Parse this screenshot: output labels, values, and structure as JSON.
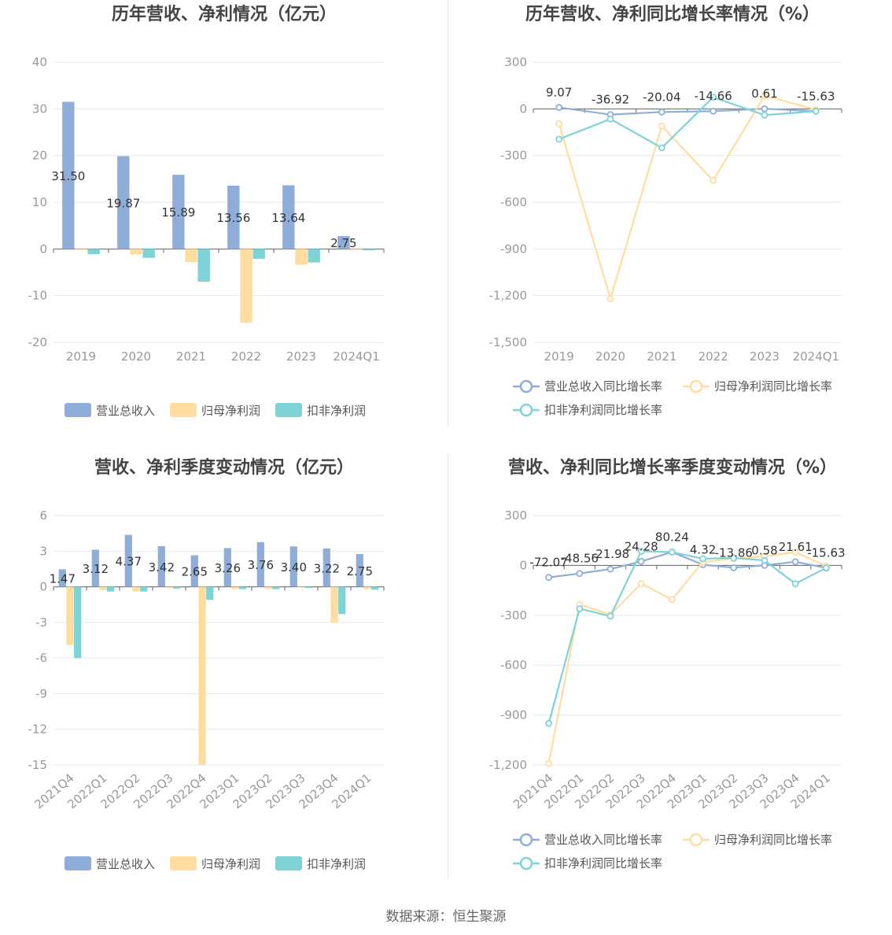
{
  "source_note": "数据来源：恒生聚源",
  "colors": {
    "revenue": "#8eaed9",
    "net_profit": "#ffdda1",
    "deducted_profit": "#7dd3d6",
    "grid": "#e6e8f0",
    "axis_text": "#999999",
    "title": "#444444"
  },
  "chart_data": [
    {
      "type": "bar",
      "title": "历年营收、净利情况（亿元）",
      "categories": [
        "2019",
        "2020",
        "2021",
        "2022",
        "2023",
        "2024Q1"
      ],
      "ylim": [
        -20,
        40
      ],
      "yticks": [
        40,
        30,
        20,
        10,
        0,
        -10,
        -20
      ],
      "series": [
        {
          "name": "营业总收入",
          "values": [
            31.5,
            19.87,
            15.89,
            13.56,
            13.64,
            2.75
          ],
          "labels": [
            "31.50",
            "19.87",
            "15.89",
            "13.56",
            "13.64",
            "2.75"
          ]
        },
        {
          "name": "归母净利润",
          "values": [
            -0.2,
            -1.2,
            -2.8,
            -15.8,
            -3.4,
            -0.2
          ]
        },
        {
          "name": "扣非净利润",
          "values": [
            -1.1,
            -1.9,
            -7.0,
            -2.1,
            -2.9,
            -0.3
          ]
        }
      ],
      "legend_position": "bottom",
      "grid": true
    },
    {
      "type": "line",
      "title": "历年营收、净利同比增长率情况（%）",
      "categories": [
        "2019",
        "2020",
        "2021",
        "2022",
        "2023",
        "2024Q1"
      ],
      "ylim": [
        -1500,
        300
      ],
      "yticks": [
        "300",
        "0",
        "-300",
        "-600",
        "-900",
        "-1,200",
        "-1,500"
      ],
      "series": [
        {
          "name": "营业总收入同比增长率",
          "values": [
            9.07,
            -36.92,
            -20.04,
            -14.66,
            0.61,
            -15.63
          ],
          "labels": [
            "9.07",
            "-36.92",
            "-20.04",
            "-14.66",
            "0.61",
            "-15.63"
          ]
        },
        {
          "name": "归母净利润同比增长率",
          "values": [
            -95,
            -1220,
            -110,
            -460,
            85,
            -5
          ]
        },
        {
          "name": "扣非净利润同比增长率",
          "values": [
            -195,
            -65,
            -250,
            75,
            -40,
            -15
          ]
        }
      ],
      "legend_position": "bottom",
      "grid": true
    },
    {
      "type": "bar",
      "title": "营收、净利季度变动情况（亿元）",
      "categories": [
        "2021Q4",
        "2022Q1",
        "2022Q2",
        "2022Q3",
        "2022Q4",
        "2023Q1",
        "2023Q2",
        "2023Q3",
        "2023Q4",
        "2024Q1"
      ],
      "ylim": [
        -15,
        6
      ],
      "yticks": [
        6,
        3,
        0,
        -3,
        -6,
        -9,
        -12,
        -15
      ],
      "series": [
        {
          "name": "营业总收入",
          "values": [
            1.47,
            3.12,
            4.37,
            3.42,
            2.65,
            3.26,
            3.76,
            3.4,
            3.22,
            2.75
          ],
          "labels": [
            "1.47",
            "3.12",
            "4.37",
            "3.42",
            "2.65",
            "3.26",
            "3.76",
            "3.40",
            "3.22",
            "2.75"
          ]
        },
        {
          "name": "归母净利润",
          "values": [
            -4.9,
            -0.3,
            -0.4,
            -0.1,
            -15.0,
            -0.2,
            -0.2,
            -0.05,
            -3.0,
            -0.2
          ]
        },
        {
          "name": "扣非净利润",
          "values": [
            -6.0,
            -0.4,
            -0.4,
            -0.15,
            -1.1,
            -0.2,
            -0.2,
            -0.1,
            -2.3,
            -0.25
          ]
        }
      ],
      "legend_position": "bottom",
      "grid": true
    },
    {
      "type": "line",
      "title": "营收、净利同比增长率季度变动情况（%）",
      "categories": [
        "2021Q4",
        "2022Q1",
        "2022Q2",
        "2022Q3",
        "2022Q4",
        "2023Q1",
        "2023Q2",
        "2023Q3",
        "2023Q4",
        "2024Q1"
      ],
      "ylim": [
        -1200,
        300
      ],
      "yticks": [
        "300",
        "0",
        "-300",
        "-600",
        "-900",
        "-1,200"
      ],
      "series": [
        {
          "name": "营业总收入同比增长率",
          "values": [
            -72.07,
            -48.56,
            -21.98,
            24.28,
            80.24,
            4.32,
            -13.86,
            0.58,
            21.61,
            -15.63
          ],
          "labels": [
            "-72.07",
            "-48.56",
            "-21.98",
            "24.28",
            "80.24",
            "4.32",
            "-13.86",
            "0.58",
            "21.61",
            "-15.63"
          ]
        },
        {
          "name": "归母净利润同比增长率",
          "values": [
            -1190,
            -235,
            -295,
            -110,
            -205,
            20,
            40,
            55,
            80,
            -5
          ]
        },
        {
          "name": "扣非净利润同比增长率",
          "values": [
            -950,
            -260,
            -305,
            85,
            80,
            40,
            45,
            30,
            -110,
            -15
          ]
        }
      ],
      "legend_position": "bottom",
      "grid": true
    }
  ]
}
